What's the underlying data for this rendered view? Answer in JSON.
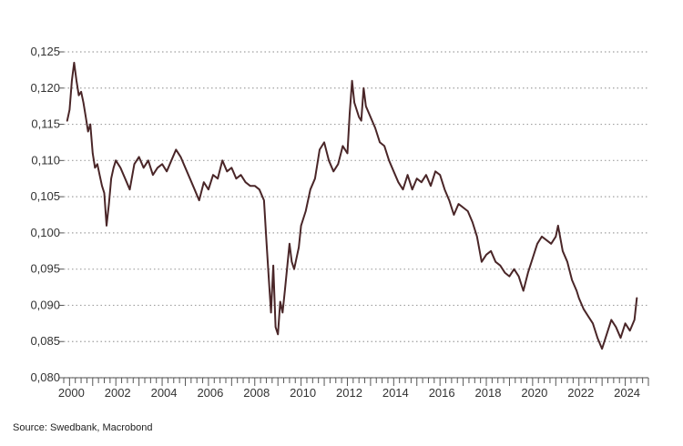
{
  "source_text": "Source: Swedbank, Macrobond",
  "colors": {
    "line": "#4a2628",
    "grid": "#a0a0a0",
    "axis": "#555555",
    "text": "#333333"
  },
  "chart_data": {
    "type": "line",
    "title": "",
    "xlabel": "",
    "ylabel": "",
    "xlim": [
      1999.75,
      2025.0
    ],
    "ylim": [
      0.08,
      0.125
    ],
    "grid": "horizontal-dotted",
    "yticks": [
      {
        "value": 0.08,
        "label": "0,080"
      },
      {
        "value": 0.085,
        "label": "0,085"
      },
      {
        "value": 0.09,
        "label": "0,090"
      },
      {
        "value": 0.095,
        "label": "0,095"
      },
      {
        "value": 0.1,
        "label": "0,100"
      },
      {
        "value": 0.105,
        "label": "0,105"
      },
      {
        "value": 0.11,
        "label": "0,110"
      },
      {
        "value": 0.115,
        "label": "0,115"
      },
      {
        "value": 0.12,
        "label": "0,120"
      },
      {
        "value": 0.125,
        "label": "0,125"
      }
    ],
    "xticks": [
      {
        "value": 2000,
        "label": "2000"
      },
      {
        "value": 2002,
        "label": "2002"
      },
      {
        "value": 2004,
        "label": "2004"
      },
      {
        "value": 2006,
        "label": "2006"
      },
      {
        "value": 2008,
        "label": "2008"
      },
      {
        "value": 2010,
        "label": "2010"
      },
      {
        "value": 2012,
        "label": "2012"
      },
      {
        "value": 2014,
        "label": "2014"
      },
      {
        "value": 2016,
        "label": "2016"
      },
      {
        "value": 2018,
        "label": "2018"
      },
      {
        "value": 2020,
        "label": "2020"
      },
      {
        "value": 2022,
        "label": "2022"
      },
      {
        "value": 2024,
        "label": "2024"
      }
    ],
    "series": [
      {
        "points": [
          [
            1999.9,
            0.1155
          ],
          [
            2000.0,
            0.117
          ],
          [
            2000.1,
            0.121
          ],
          [
            2000.2,
            0.1235
          ],
          [
            2000.3,
            0.121
          ],
          [
            2000.4,
            0.119
          ],
          [
            2000.5,
            0.1195
          ],
          [
            2000.6,
            0.118
          ],
          [
            2000.7,
            0.116
          ],
          [
            2000.8,
            0.114
          ],
          [
            2000.9,
            0.115
          ],
          [
            2001.0,
            0.111
          ],
          [
            2001.1,
            0.109
          ],
          [
            2001.2,
            0.1095
          ],
          [
            2001.3,
            0.108
          ],
          [
            2001.4,
            0.1065
          ],
          [
            2001.5,
            0.1055
          ],
          [
            2001.6,
            0.101
          ],
          [
            2001.7,
            0.104
          ],
          [
            2001.8,
            0.1075
          ],
          [
            2001.9,
            0.109
          ],
          [
            2002.0,
            0.11
          ],
          [
            2002.2,
            0.109
          ],
          [
            2002.4,
            0.1075
          ],
          [
            2002.6,
            0.106
          ],
          [
            2002.8,
            0.1095
          ],
          [
            2003.0,
            0.1105
          ],
          [
            2003.2,
            0.109
          ],
          [
            2003.4,
            0.11
          ],
          [
            2003.6,
            0.108
          ],
          [
            2003.8,
            0.109
          ],
          [
            2004.0,
            0.1095
          ],
          [
            2004.2,
            0.1085
          ],
          [
            2004.4,
            0.11
          ],
          [
            2004.6,
            0.1115
          ],
          [
            2004.8,
            0.1105
          ],
          [
            2005.0,
            0.109
          ],
          [
            2005.2,
            0.1075
          ],
          [
            2005.4,
            0.106
          ],
          [
            2005.6,
            0.1045
          ],
          [
            2005.8,
            0.107
          ],
          [
            2006.0,
            0.106
          ],
          [
            2006.2,
            0.108
          ],
          [
            2006.4,
            0.1075
          ],
          [
            2006.6,
            0.11
          ],
          [
            2006.8,
            0.1085
          ],
          [
            2007.0,
            0.109
          ],
          [
            2007.2,
            0.1075
          ],
          [
            2007.4,
            0.108
          ],
          [
            2007.6,
            0.107
          ],
          [
            2007.8,
            0.1065
          ],
          [
            2008.0,
            0.1065
          ],
          [
            2008.2,
            0.106
          ],
          [
            2008.4,
            0.1045
          ],
          [
            2008.5,
            0.099
          ],
          [
            2008.6,
            0.094
          ],
          [
            2008.7,
            0.089
          ],
          [
            2008.8,
            0.0955
          ],
          [
            2008.9,
            0.087
          ],
          [
            2009.0,
            0.086
          ],
          [
            2009.1,
            0.0905
          ],
          [
            2009.2,
            0.089
          ],
          [
            2009.3,
            0.092
          ],
          [
            2009.5,
            0.0985
          ],
          [
            2009.6,
            0.096
          ],
          [
            2009.7,
            0.095
          ],
          [
            2009.9,
            0.098
          ],
          [
            2010.0,
            0.101
          ],
          [
            2010.2,
            0.103
          ],
          [
            2010.4,
            0.106
          ],
          [
            2010.6,
            0.1075
          ],
          [
            2010.8,
            0.1115
          ],
          [
            2011.0,
            0.1125
          ],
          [
            2011.2,
            0.11
          ],
          [
            2011.4,
            0.1085
          ],
          [
            2011.6,
            0.1095
          ],
          [
            2011.8,
            0.112
          ],
          [
            2012.0,
            0.111
          ],
          [
            2012.1,
            0.1165
          ],
          [
            2012.2,
            0.121
          ],
          [
            2012.3,
            0.118
          ],
          [
            2012.5,
            0.116
          ],
          [
            2012.6,
            0.1155
          ],
          [
            2012.7,
            0.12
          ],
          [
            2012.8,
            0.1175
          ],
          [
            2013.0,
            0.116
          ],
          [
            2013.2,
            0.1145
          ],
          [
            2013.4,
            0.1125
          ],
          [
            2013.6,
            0.112
          ],
          [
            2013.8,
            0.11
          ],
          [
            2014.0,
            0.1085
          ],
          [
            2014.2,
            0.107
          ],
          [
            2014.4,
            0.106
          ],
          [
            2014.6,
            0.108
          ],
          [
            2014.8,
            0.106
          ],
          [
            2015.0,
            0.1075
          ],
          [
            2015.2,
            0.107
          ],
          [
            2015.4,
            0.108
          ],
          [
            2015.6,
            0.1065
          ],
          [
            2015.8,
            0.1085
          ],
          [
            2016.0,
            0.108
          ],
          [
            2016.2,
            0.106
          ],
          [
            2016.4,
            0.1045
          ],
          [
            2016.6,
            0.1025
          ],
          [
            2016.8,
            0.104
          ],
          [
            2017.0,
            0.1035
          ],
          [
            2017.2,
            0.103
          ],
          [
            2017.4,
            0.1015
          ],
          [
            2017.6,
            0.0995
          ],
          [
            2017.8,
            0.096
          ],
          [
            2018.0,
            0.097
          ],
          [
            2018.2,
            0.0975
          ],
          [
            2018.4,
            0.096
          ],
          [
            2018.6,
            0.0955
          ],
          [
            2018.8,
            0.0945
          ],
          [
            2019.0,
            0.094
          ],
          [
            2019.2,
            0.095
          ],
          [
            2019.4,
            0.094
          ],
          [
            2019.6,
            0.092
          ],
          [
            2019.8,
            0.0945
          ],
          [
            2020.0,
            0.0965
          ],
          [
            2020.2,
            0.0985
          ],
          [
            2020.4,
            0.0995
          ],
          [
            2020.6,
            0.099
          ],
          [
            2020.8,
            0.0985
          ],
          [
            2021.0,
            0.0995
          ],
          [
            2021.1,
            0.101
          ],
          [
            2021.3,
            0.0975
          ],
          [
            2021.5,
            0.096
          ],
          [
            2021.7,
            0.0935
          ],
          [
            2021.9,
            0.092
          ],
          [
            2022.0,
            0.091
          ],
          [
            2022.2,
            0.0895
          ],
          [
            2022.4,
            0.0885
          ],
          [
            2022.6,
            0.0875
          ],
          [
            2022.8,
            0.0855
          ],
          [
            2023.0,
            0.084
          ],
          [
            2023.2,
            0.086
          ],
          [
            2023.4,
            0.088
          ],
          [
            2023.6,
            0.087
          ],
          [
            2023.8,
            0.0855
          ],
          [
            2024.0,
            0.0875
          ],
          [
            2024.2,
            0.0865
          ],
          [
            2024.4,
            0.088
          ],
          [
            2024.5,
            0.091
          ]
        ]
      }
    ]
  }
}
